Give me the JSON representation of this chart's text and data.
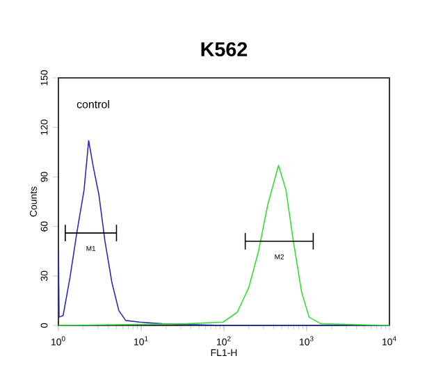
{
  "chart_data": {
    "type": "line",
    "title": "K562",
    "xlabel": "FL1-H",
    "ylabel": "Counts",
    "log": "x",
    "xlim": [
      1,
      10000
    ],
    "ylim": [
      0,
      150
    ],
    "xticks": [
      {
        "value": 1,
        "label": "10$^{0}$"
      },
      {
        "value": 10,
        "label": "10$^{1}$"
      },
      {
        "value": 100,
        "label": "10$^{2}$"
      },
      {
        "value": 1000,
        "label": "10$^{3}$"
      },
      {
        "value": 10000,
        "label": "10$^{4}$"
      }
    ],
    "yticks": [
      0,
      30,
      60,
      90,
      120,
      150
    ],
    "series": [
      {
        "color": "#2a2ab8",
        "x": [
          1,
          1.02,
          1.14,
          1.38,
          1.68,
          2.04,
          2.32,
          2.64,
          3.09,
          3.65,
          4.43,
          5.37,
          6.5,
          9.6,
          18,
          100,
          10000
        ],
        "values": [
          45,
          5,
          6,
          29,
          57,
          82,
          112,
          96,
          79,
          51,
          26,
          9,
          3,
          2,
          1,
          0,
          0
        ]
      },
      {
        "color": "#33dd33",
        "x": [
          1,
          35,
          98,
          145,
          200,
          262,
          338,
          457,
          562,
          690,
          870,
          1070,
          1480,
          10000
        ],
        "values": [
          0,
          1,
          2,
          8,
          23,
          45,
          73,
          97,
          82,
          51,
          20,
          5,
          1,
          0
        ]
      },
      {
        "type": "line",
        "color": "#000000",
        "x": [
          1.21,
          5.03
        ],
        "values": [
          56,
          56
        ],
        "errors": [
          5,
          5
        ]
      },
      {
        "type": "line",
        "color": "#000000",
        "x": [
          181,
          1200
        ],
        "values": [
          51,
          51
        ],
        "errors": [
          5,
          5
        ]
      }
    ],
    "annotations": [
      "control",
      "M1",
      "M2"
    ]
  }
}
